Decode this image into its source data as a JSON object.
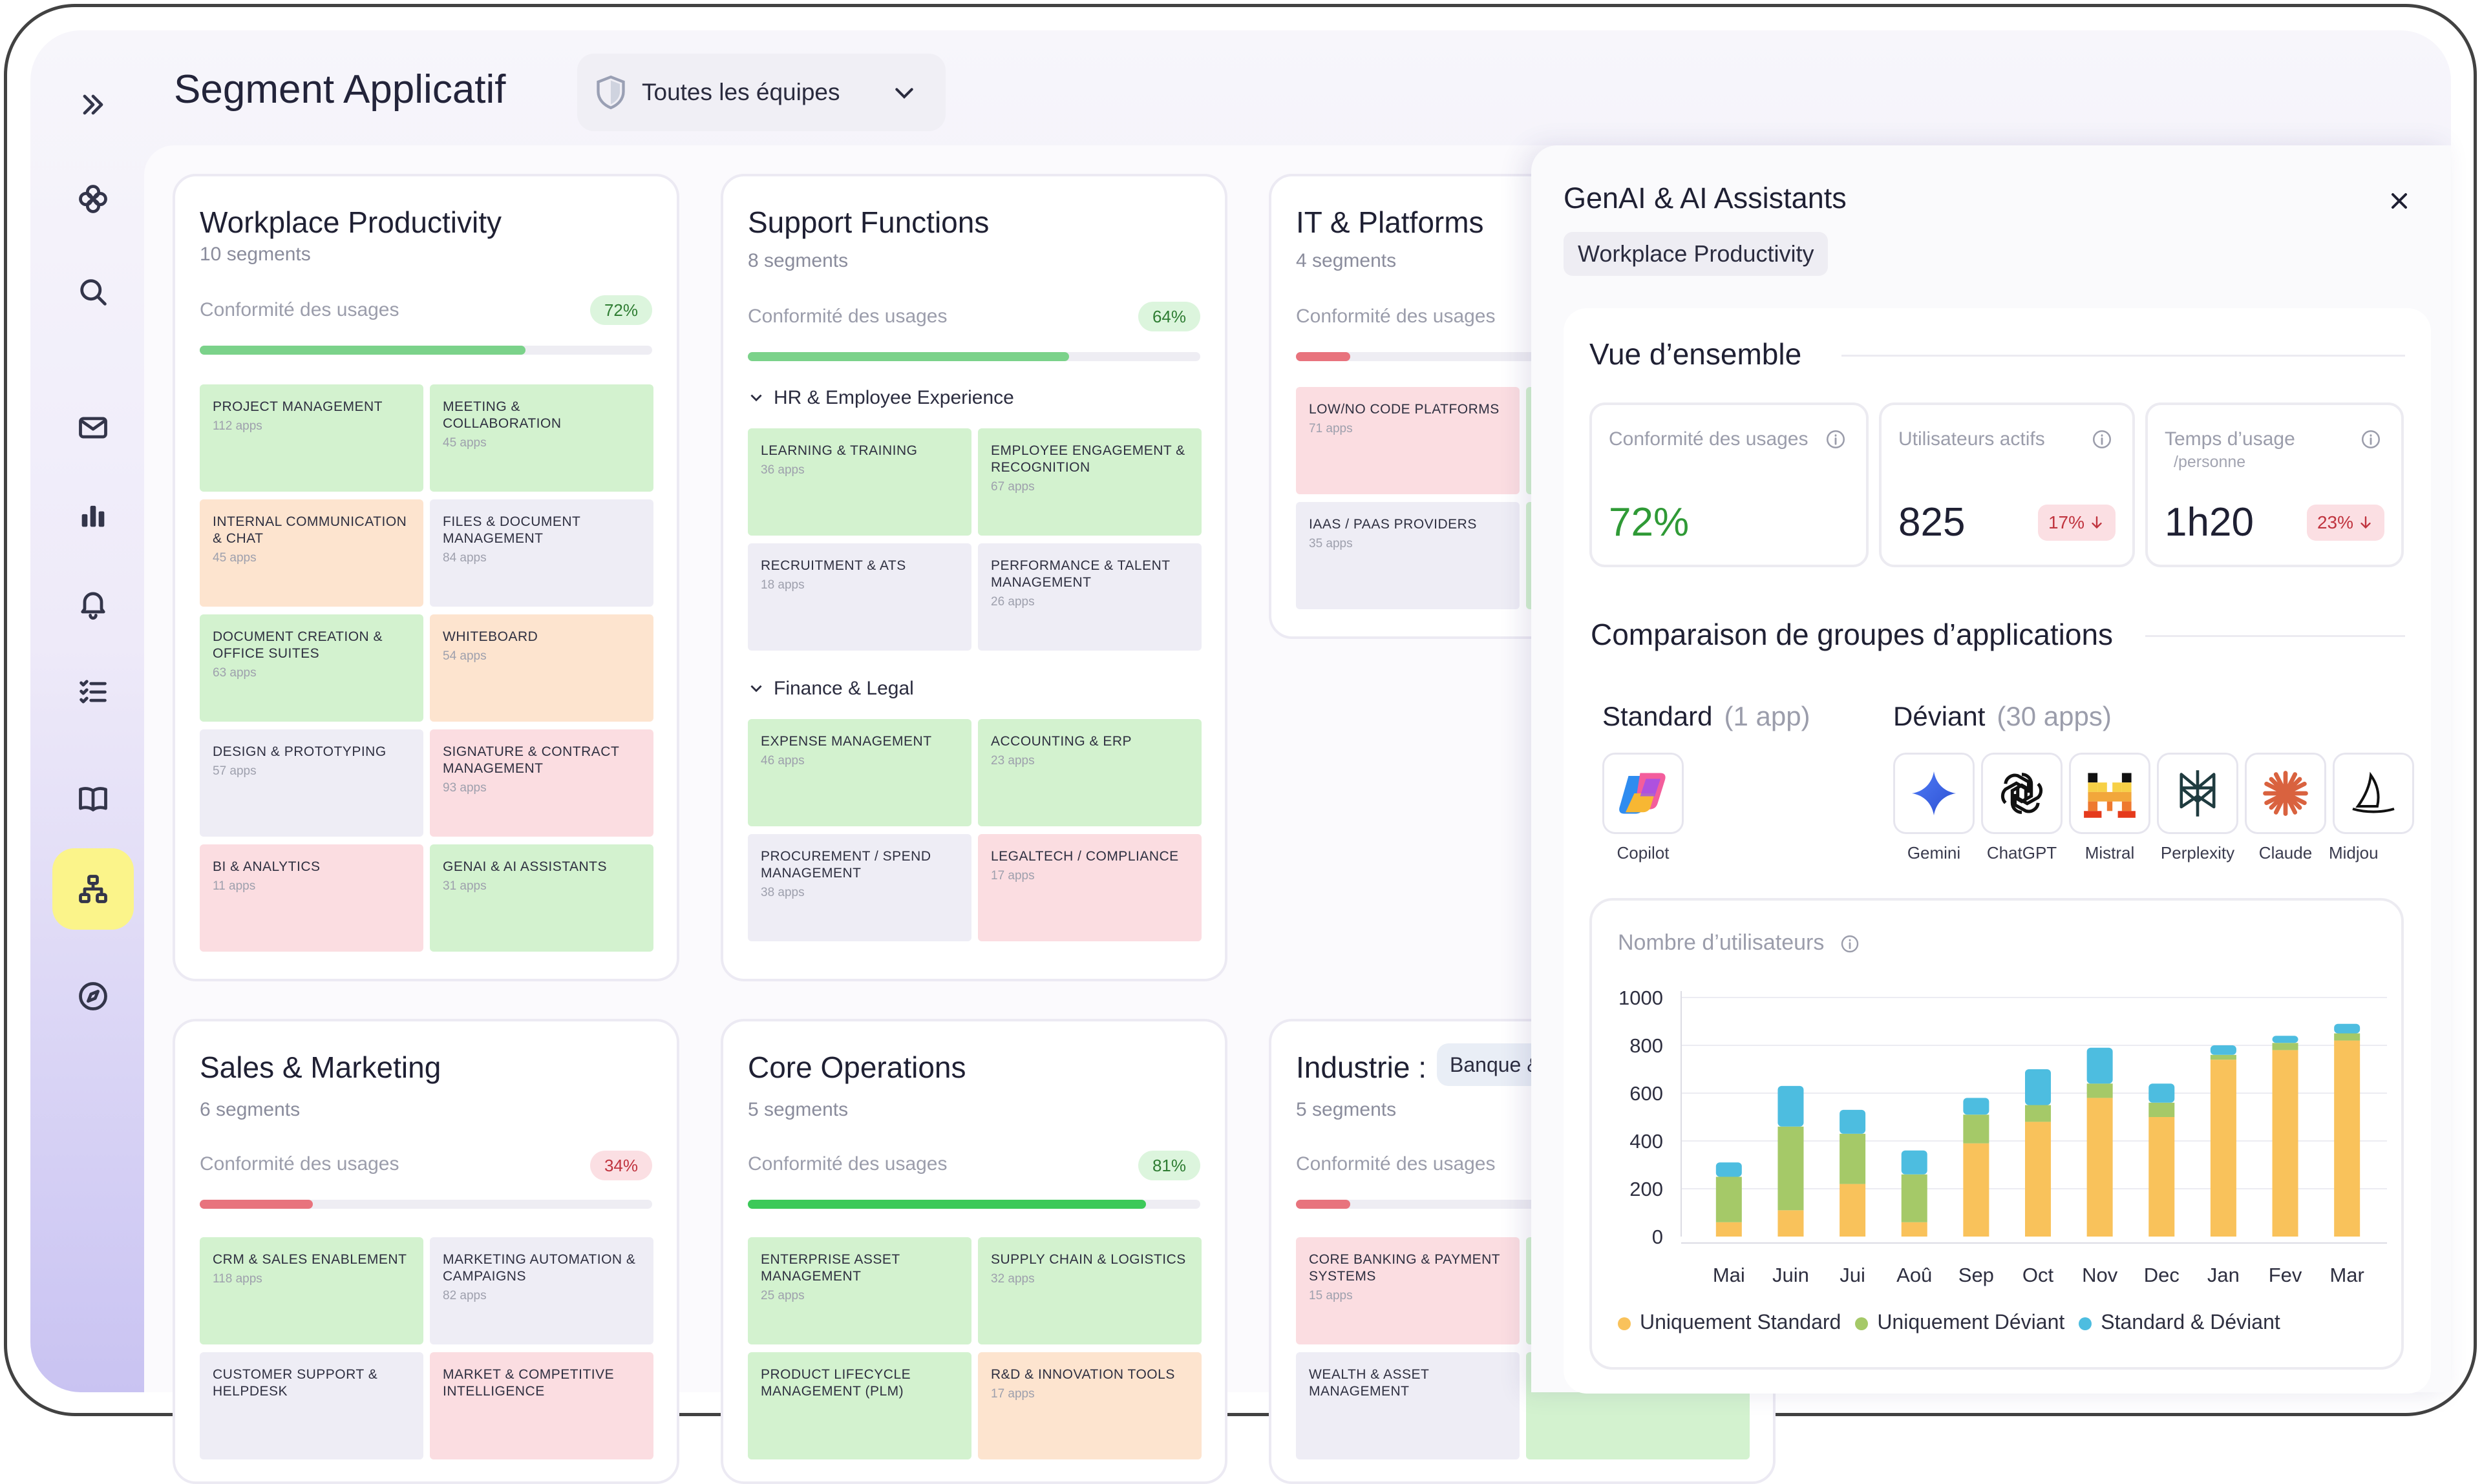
{
  "app": {
    "title": "Segment Applicatif"
  },
  "team_select": {
    "value": "Toutes les équipes"
  },
  "colors": {
    "green": "#d3f2cf",
    "red": "#fbdde1",
    "orange": "#fde4cf",
    "gray": "#eeedf5",
    "accent_yellow": "#fbf48a"
  },
  "sidebar": {
    "items": [
      "expand-icon",
      "logo-icon",
      "search-icon",
      "mail-icon",
      "bar-chart-icon",
      "bell-icon",
      "checklist-icon",
      "book-icon",
      "hierarchy-icon",
      "compass-icon"
    ],
    "active": "hierarchy-icon"
  },
  "cards": [
    {
      "title": "Workplace Productivity",
      "sub": "10 segments",
      "conf_label": "Conformité des usages",
      "pct": "72%",
      "fill": 0.72,
      "status": "good",
      "tiles": [
        {
          "name": "PROJECT MANAGEMENT",
          "apps": "112 apps",
          "color": "green"
        },
        {
          "name": "MEETING & COLLABORATION",
          "apps": "45 apps",
          "color": "green"
        },
        {
          "name": "INTERNAL COMMUNICATION & CHAT",
          "apps": "45 apps",
          "color": "orange"
        },
        {
          "name": "FILES & DOCUMENT MANAGEMENT",
          "apps": "84 apps",
          "color": "gray"
        },
        {
          "name": "DOCUMENT CREATION & OFFICE SUITES",
          "apps": "63 apps",
          "color": "green"
        },
        {
          "name": "WHITEBOARD",
          "apps": "54 apps",
          "color": "orange"
        },
        {
          "name": "DESIGN & PROTOTYPING",
          "apps": "57 apps",
          "color": "gray"
        },
        {
          "name": "SIGNATURE & CONTRACT MANAGEMENT",
          "apps": "93 apps",
          "color": "red"
        },
        {
          "name": "BI & ANALYTICS",
          "apps": "11 apps",
          "color": "red"
        },
        {
          "name": "GENAI & AI ASSISTANTS",
          "apps": "31 apps",
          "color": "green"
        }
      ]
    },
    {
      "title": "Support Functions",
      "sub": "8 segments",
      "conf_label": "Conformité des usages",
      "pct": "64%",
      "fill": 0.71,
      "status": "good",
      "groups": [
        {
          "label": "HR & Employee Experience",
          "tiles": [
            {
              "name": "LEARNING & TRAINING",
              "apps": "36 apps",
              "color": "green"
            },
            {
              "name": "EMPLOYEE ENGAGEMENT & RECOGNITION",
              "apps": "67 apps",
              "color": "green"
            },
            {
              "name": "RECRUITMENT & ATS",
              "apps": "18 apps",
              "color": "gray"
            },
            {
              "name": "PERFORMANCE & TALENT MANAGEMENT",
              "apps": "26 apps",
              "color": "gray"
            }
          ]
        },
        {
          "label": "Finance & Legal",
          "tiles": [
            {
              "name": "EXPENSE MANAGEMENT",
              "apps": "46 apps",
              "color": "green"
            },
            {
              "name": "ACCOUNTING & ERP",
              "apps": "23 apps",
              "color": "green"
            },
            {
              "name": "PROCUREMENT / SPEND MANAGEMENT",
              "apps": "38 apps",
              "color": "gray"
            },
            {
              "name": "LEGALTECH / COMPLIANCE",
              "apps": "17 apps",
              "color": "red"
            }
          ]
        }
      ]
    },
    {
      "title": "IT & Platforms",
      "sub": "4 segments",
      "conf_label": "Conformité des usages",
      "fill": 0.12,
      "status": "bad",
      "tiles": [
        {
          "name": "LOW/NO CODE PLATFORMS",
          "apps": "71 apps",
          "color": "red"
        },
        {
          "name": "",
          "apps": "",
          "color": "green"
        },
        {
          "name": "IAAS / PAAS PROVIDERS",
          "apps": "35 apps",
          "color": "gray"
        },
        {
          "name": "",
          "apps": "",
          "color": "green"
        }
      ]
    },
    {
      "title": "Sales & Marketing",
      "sub": "6 segments",
      "conf_label": "Conformité des usages",
      "pct": "34%",
      "fill": 0.25,
      "status": "bad",
      "tiles": [
        {
          "name": "CRM & SALES ENABLEMENT",
          "apps": "118 apps",
          "color": "green"
        },
        {
          "name": "MARKETING AUTOMATION & CAMPAIGNS",
          "apps": "82 apps",
          "color": "gray"
        },
        {
          "name": "CUSTOMER SUPPORT & HELPDESK",
          "apps": "",
          "color": "gray"
        },
        {
          "name": "MARKET & COMPETITIVE INTELLIGENCE",
          "apps": "",
          "color": "red"
        }
      ]
    },
    {
      "title": "Core Operations",
      "sub": "5 segments",
      "conf_label": "Conformité des usages",
      "pct": "81%",
      "fill": 0.88,
      "status": "good",
      "tiles": [
        {
          "name": "ENTERPRISE ASSET MANAGEMENT",
          "apps": "25 apps",
          "color": "green"
        },
        {
          "name": "SUPPLY CHAIN & LOGISTICS",
          "apps": "32 apps",
          "color": "green"
        },
        {
          "name": "PRODUCT LIFECYCLE MANAGEMENT (PLM)",
          "apps": "",
          "color": "green"
        },
        {
          "name": "R&D & INNOVATION TOOLS",
          "apps": "17 apps",
          "color": "orange"
        }
      ]
    },
    {
      "title": "Industrie :",
      "tag": "Banque &",
      "sub": "5 segments",
      "conf_label": "Conformité des usages",
      "fill": 0.12,
      "status": "bad",
      "tiles": [
        {
          "name": "CORE BANKING & PAYMENT SYSTEMS",
          "apps": "15 apps",
          "color": "red"
        },
        {
          "name": "",
          "apps": "",
          "color": "green"
        },
        {
          "name": "WEALTH & ASSET MANAGEMENT",
          "apps": "",
          "color": "gray"
        },
        {
          "name": "",
          "apps": "",
          "color": "green"
        }
      ]
    }
  ],
  "panel": {
    "title": "GenAI & AI Assistants",
    "tag": "Workplace Productivity",
    "overview_title": "Vue d’ensemble",
    "stats": [
      {
        "label": "Conformité des usages",
        "value": "72%"
      },
      {
        "label": "Utilisateurs actifs",
        "value": "825",
        "badge": "17%"
      },
      {
        "label": "Temps d’usage",
        "sublabel": "/personne",
        "value": "1h20",
        "badge": "23%"
      }
    ],
    "comparison_title": "Comparaison de groupes d’applications",
    "standard_label": "Standard",
    "standard_count": "(1 app)",
    "deviant_label": "Déviant",
    "deviant_count": "(30 apps)",
    "standard_apps": [
      "Copilot"
    ],
    "deviant_apps": [
      "Gemini",
      "ChatGPT",
      "Mistral",
      "Perplexity",
      "Claude",
      "Midjou"
    ]
  },
  "chart_data": {
    "type": "bar",
    "stacked": true,
    "title": "Nombre d’utilisateurs",
    "categories": [
      "Mai",
      "Juin",
      "Jui",
      "Aoû",
      "Sep",
      "Oct",
      "Nov",
      "Dec",
      "Jan",
      "Fev",
      "Mar"
    ],
    "yticks": [
      "1000",
      "800",
      "600",
      "400",
      "200",
      "0"
    ],
    "ylim": [
      0,
      1000
    ],
    "grid": true,
    "legend_position": "bottom",
    "series": [
      {
        "name": "Uniquement Standard",
        "color": "#f9c25b",
        "values": [
          60,
          110,
          220,
          60,
          390,
          480,
          580,
          500,
          740,
          780,
          820
        ]
      },
      {
        "name": "Uniquement Déviant",
        "color": "#a5c968",
        "values": [
          190,
          350,
          210,
          200,
          120,
          70,
          60,
          60,
          20,
          30,
          30
        ]
      },
      {
        "name": "Standard & Déviant",
        "color": "#4dbde0",
        "values": [
          60,
          170,
          100,
          100,
          70,
          150,
          150,
          80,
          40,
          30,
          40
        ]
      }
    ]
  }
}
